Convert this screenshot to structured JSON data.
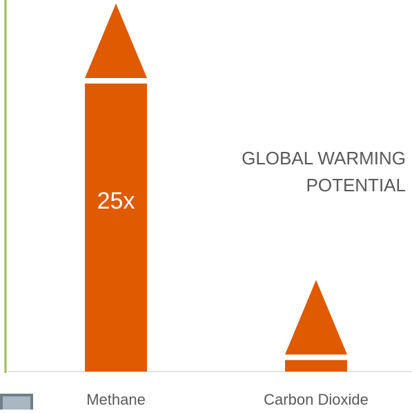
{
  "chart_data": {
    "type": "bar",
    "title_lines": [
      "GLOBAL WARMING",
      "POTENTIAL"
    ],
    "categories": [
      "Methane",
      "Carbon Dioxide"
    ],
    "values": [
      25,
      1
    ],
    "value_labels": [
      "25x",
      null
    ],
    "color": "#df5a00"
  }
}
